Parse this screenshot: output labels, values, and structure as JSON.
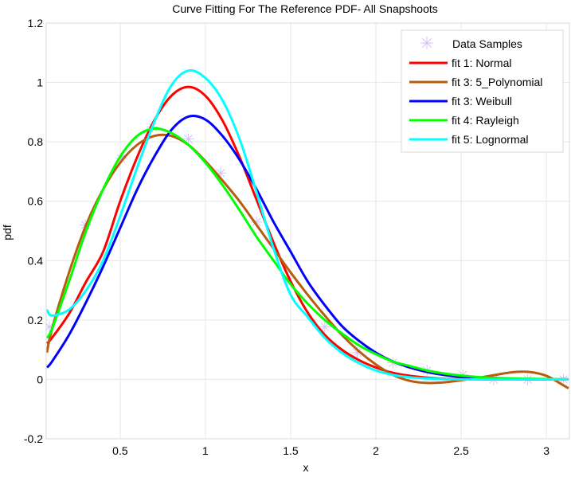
{
  "chart_data": {
    "type": "line",
    "title": "Curve Fitting For The Reference PDF- All Snapshoots",
    "xlabel": "x",
    "ylabel": "pdf",
    "xlim": [
      0.066,
      3.135
    ],
    "ylim": [
      -0.2,
      1.2
    ],
    "xticks": [
      0.5,
      1,
      1.5,
      2,
      2.5,
      3
    ],
    "xtick_labels": [
      "0.5",
      "1",
      "1.5",
      "2",
      "2.5",
      "3"
    ],
    "yticks": [
      -0.2,
      0,
      0.2,
      0.4,
      0.6,
      0.8,
      1,
      1.2
    ],
    "ytick_labels": [
      "-0.2",
      "0",
      "0.2",
      "0.4",
      "0.6",
      "0.8",
      "1",
      "1.2"
    ],
    "grid": true,
    "legend_position": "top-right",
    "samples": {
      "name": "Data Samples",
      "marker": "asterisk",
      "color": "#d4c4f0",
      "x": [
        0.085,
        0.295,
        0.505,
        0.69,
        0.9,
        1.09,
        1.3,
        1.48,
        1.7,
        1.89,
        2.1,
        2.3,
        2.51,
        2.69,
        2.89,
        3.1
      ],
      "y": [
        0.177,
        0.52,
        0.744,
        0.85,
        0.81,
        0.695,
        0.53,
        0.34,
        0.177,
        0.09,
        0.056,
        0.03,
        0.015,
        0.0,
        0.0,
        0.0
      ]
    },
    "x": [
      0.07,
      0.1,
      0.2,
      0.3,
      0.4,
      0.5,
      0.6,
      0.7,
      0.8,
      0.9,
      1.0,
      1.1,
      1.2,
      1.3,
      1.4,
      1.5,
      1.6,
      1.7,
      1.8,
      1.9,
      2.0,
      2.1,
      2.2,
      2.3,
      2.4,
      2.5,
      2.6,
      2.7,
      2.8,
      2.9,
      3.0,
      3.1,
      3.13
    ],
    "series": [
      {
        "name": "fit 1: Normal",
        "color": "#ff0000",
        "values": [
          0.121,
          0.14,
          0.221,
          0.329,
          0.43,
          0.6,
          0.749,
          0.872,
          0.955,
          0.985,
          0.955,
          0.872,
          0.749,
          0.605,
          0.46,
          0.33,
          0.225,
          0.15,
          0.1,
          0.065,
          0.04,
          0.022,
          0.012,
          0.006,
          0.002,
          0.001,
          0,
          0,
          0,
          0,
          0,
          0,
          0
        ]
      },
      {
        "name": "fit 3: 5_Polynomial",
        "color": "#b85c10",
        "values": [
          0.09,
          0.17,
          0.36,
          0.52,
          0.64,
          0.73,
          0.79,
          0.82,
          0.82,
          0.79,
          0.735,
          0.67,
          0.6,
          0.52,
          0.44,
          0.36,
          0.285,
          0.215,
          0.15,
          0.095,
          0.05,
          0.015,
          -0.005,
          -0.012,
          -0.01,
          -0.003,
          0.005,
          0.015,
          0.024,
          0.025,
          0.012,
          -0.02,
          -0.03
        ]
      },
      {
        "name": "fit 3: Weibull",
        "color": "#0000ff",
        "values": [
          0.04,
          0.06,
          0.15,
          0.26,
          0.38,
          0.51,
          0.64,
          0.75,
          0.84,
          0.885,
          0.875,
          0.82,
          0.74,
          0.64,
          0.53,
          0.43,
          0.33,
          0.25,
          0.18,
          0.13,
          0.09,
          0.06,
          0.04,
          0.025,
          0.015,
          0.008,
          0.004,
          0.002,
          0.001,
          0,
          0,
          0,
          0
        ]
      },
      {
        "name": "fit 4: Rayleigh",
        "color": "#00ff00",
        "values": [
          0.14,
          0.17,
          0.33,
          0.5,
          0.64,
          0.75,
          0.82,
          0.845,
          0.83,
          0.79,
          0.73,
          0.655,
          0.57,
          0.48,
          0.4,
          0.32,
          0.255,
          0.2,
          0.155,
          0.115,
          0.085,
          0.06,
          0.045,
          0.03,
          0.02,
          0.013,
          0.008,
          0.005,
          0.003,
          0.002,
          0.001,
          0,
          0
        ]
      },
      {
        "name": "fit 5: Lognormal",
        "color": "#00ffff",
        "values": [
          0.235,
          0.215,
          0.235,
          0.3,
          0.4,
          0.55,
          0.714,
          0.867,
          0.99,
          1.04,
          1.015,
          0.94,
          0.81,
          0.63,
          0.44,
          0.285,
          0.21,
          0.14,
          0.09,
          0.055,
          0.03,
          0.015,
          0.007,
          0.003,
          0.001,
          0,
          0,
          0,
          0,
          0,
          0,
          0,
          0
        ]
      }
    ]
  }
}
